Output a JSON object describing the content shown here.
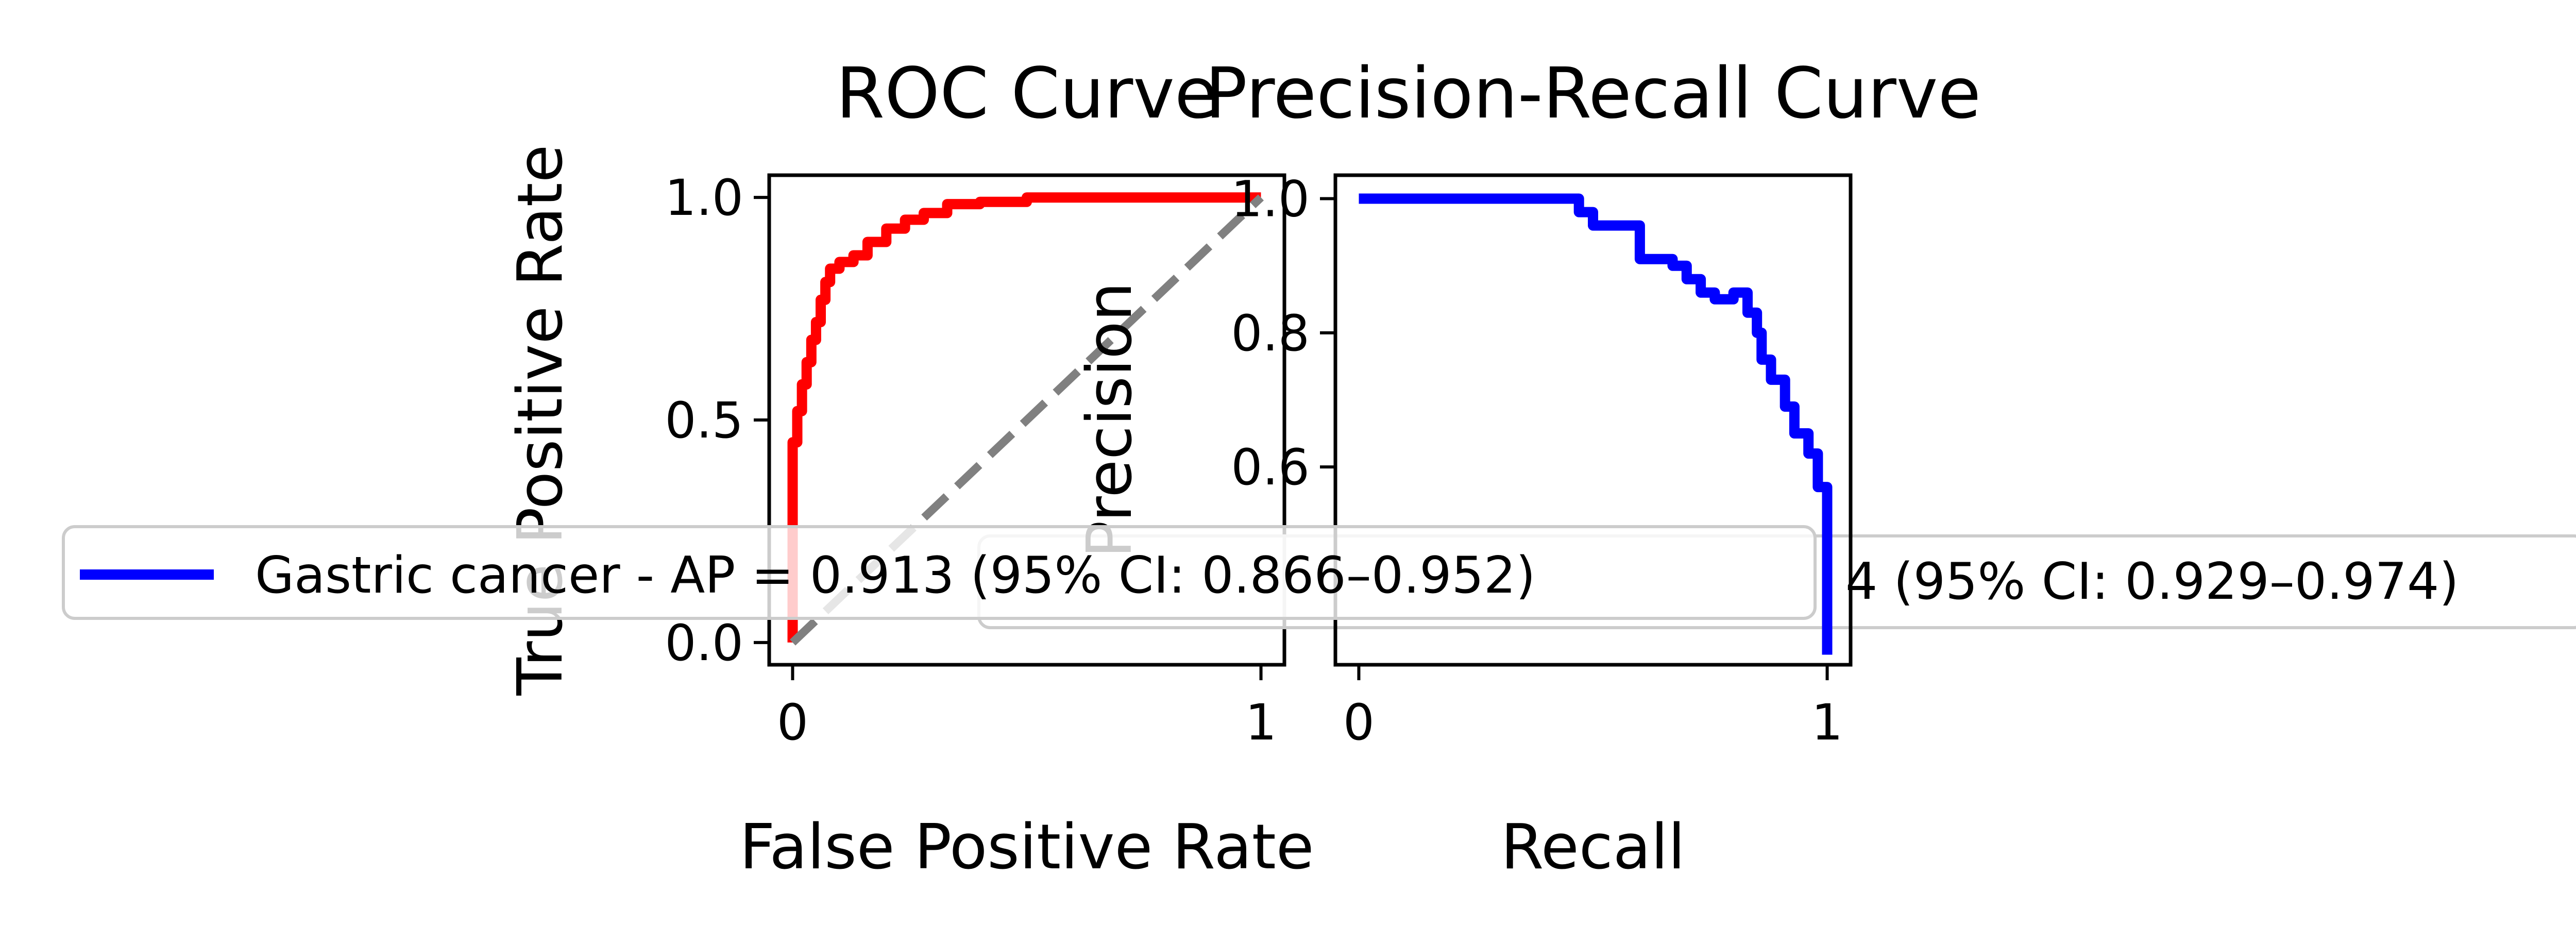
{
  "colors": {
    "roc_curve": "#ff0000",
    "pr_curve": "#0000ff",
    "chance_line": "#808080",
    "legend_border": "#cccccc",
    "axes": "#000000",
    "background": "#ffffff"
  },
  "chart_data": [
    {
      "type": "line",
      "title": "ROC Curve",
      "xlabel": "False Positive Rate",
      "ylabel": "True Positive Rate",
      "xlim": [
        -0.05,
        1.05
      ],
      "ylim": [
        -0.05,
        1.05
      ],
      "xticks": [
        0,
        1
      ],
      "xtick_labels": [
        "0",
        "1"
      ],
      "yticks": [
        0.0,
        0.5,
        1.0
      ],
      "ytick_labels": [
        "0.0",
        "0.5",
        "1.0"
      ],
      "grid": false,
      "series": [
        {
          "name": "Gastric cancer - AUC = 0.954 (95% CI: 0.929–0.974)",
          "color": "#ff0000",
          "x": [
            0,
            0,
            0.01,
            0.01,
            0.02,
            0.02,
            0.03,
            0.03,
            0.04,
            0.04,
            0.05,
            0.05,
            0.06,
            0.06,
            0.07,
            0.07,
            0.08,
            0.08,
            0.1,
            0.1,
            0.13,
            0.13,
            0.16,
            0.16,
            0.2,
            0.2,
            0.24,
            0.24,
            0.28,
            0.28,
            0.33,
            0.33,
            0.4,
            0.4,
            0.5,
            0.5,
            0.65,
            0.65,
            1.0
          ],
          "y": [
            0,
            0.45,
            0.45,
            0.52,
            0.52,
            0.58,
            0.58,
            0.63,
            0.63,
            0.68,
            0.68,
            0.72,
            0.72,
            0.77,
            0.77,
            0.81,
            0.81,
            0.84,
            0.84,
            0.855,
            0.855,
            0.87,
            0.87,
            0.9,
            0.9,
            0.93,
            0.93,
            0.95,
            0.95,
            0.965,
            0.965,
            0.985,
            0.985,
            0.99,
            0.99,
            1.0,
            1.0,
            1.0,
            1.0
          ]
        },
        {
          "name": "chance",
          "color": "#808080",
          "dashed": true,
          "x": [
            0,
            1
          ],
          "y": [
            0,
            1
          ]
        }
      ],
      "legend": {
        "placement": "lower-right",
        "entries": [
          "Gastric cancer - AUC = 0.954 (95% CI: 0.929–0.974)"
        ],
        "visible_fragment": "4 (95% CI: 0.929–0.974)"
      }
    },
    {
      "type": "line",
      "title": "Precision-Recall Curve",
      "xlabel": "Recall",
      "ylabel": "Precision",
      "xlim": [
        -0.05,
        1.05
      ],
      "ylim": [
        0.305,
        1.035
      ],
      "xticks": [
        0,
        1
      ],
      "xtick_labels": [
        "0",
        "1"
      ],
      "yticks": [
        0.6,
        0.8,
        1.0
      ],
      "ytick_labels": [
        "0.6",
        "0.8",
        "1.0"
      ],
      "grid": false,
      "series": [
        {
          "name": "Gastric cancer - AP = 0.913 (95% CI: 0.866–0.952)",
          "color": "#0000ff",
          "x": [
            0,
            0.47,
            0.47,
            0.5,
            0.5,
            0.6,
            0.6,
            0.67,
            0.67,
            0.7,
            0.7,
            0.73,
            0.73,
            0.76,
            0.76,
            0.8,
            0.8,
            0.83,
            0.83,
            0.85,
            0.85,
            0.86,
            0.86,
            0.88,
            0.88,
            0.91,
            0.91,
            0.93,
            0.93,
            0.96,
            0.96,
            0.98,
            0.98,
            1.0,
            1.0
          ],
          "y": [
            1.0,
            1.0,
            0.98,
            0.98,
            0.96,
            0.96,
            0.91,
            0.91,
            0.9,
            0.9,
            0.88,
            0.88,
            0.86,
            0.86,
            0.85,
            0.85,
            0.86,
            0.86,
            0.83,
            0.83,
            0.8,
            0.8,
            0.76,
            0.76,
            0.73,
            0.73,
            0.69,
            0.69,
            0.65,
            0.65,
            0.62,
            0.62,
            0.57,
            0.57,
            0.32
          ]
        }
      ],
      "legend": {
        "placement": "lower-right",
        "entries": [
          "Gastric cancer - AP = 0.913 (95% CI: 0.866–0.952)"
        ]
      }
    }
  ]
}
